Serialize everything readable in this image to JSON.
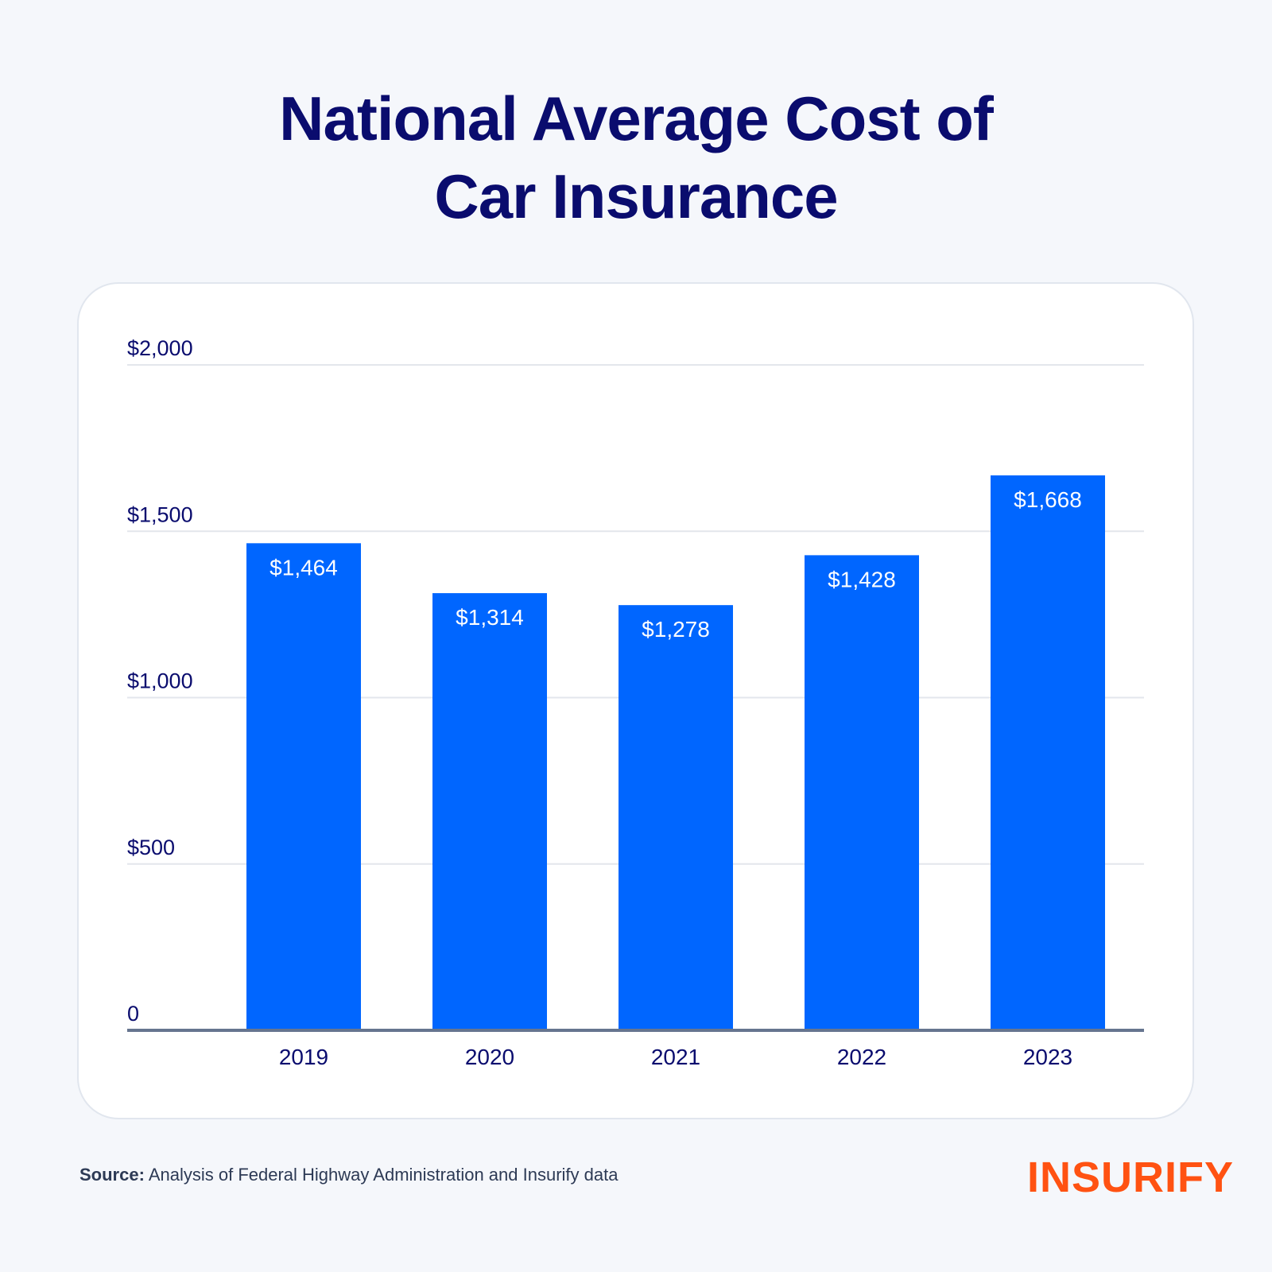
{
  "title_line1": "National Average Cost of",
  "title_line2": "Car Insurance",
  "source_label": "Source:",
  "source_text": "Analysis of Federal Highway Administration and Insurify data",
  "brand": "INSURIFY",
  "colors": {
    "bar": "#0066ff",
    "title": "#0a0c6e",
    "brand": "#ff5212",
    "axis": "#66758f",
    "grid": "#e3e6ec"
  },
  "chart_data": {
    "type": "bar",
    "categories": [
      "2019",
      "2020",
      "2021",
      "2022",
      "2023"
    ],
    "values": [
      1464,
      1314,
      1278,
      1428,
      1668
    ],
    "data_labels": [
      "$1,464",
      "$1,314",
      "$1,278",
      "$1,428",
      "$1,668"
    ],
    "ylim": [
      0,
      2000
    ],
    "yticks": [
      0,
      500,
      1000,
      1500,
      2000
    ],
    "ytick_labels": [
      "0",
      "$500",
      "$1,000",
      "$1,500",
      "$2,000"
    ],
    "grid": true,
    "legend": "none"
  }
}
